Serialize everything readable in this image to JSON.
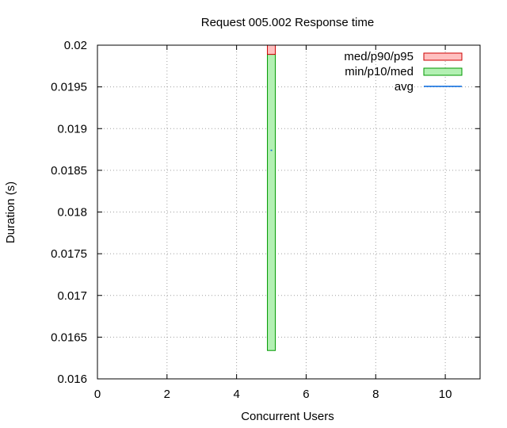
{
  "chart_data": {
    "type": "box",
    "title": "Request 005.002 Response time",
    "xlabel": "Concurrent Users",
    "ylabel": "Duration (s)",
    "xlim": [
      0,
      11
    ],
    "ylim": [
      0.016,
      0.02
    ],
    "x_ticks": [
      0,
      2,
      4,
      6,
      8,
      10
    ],
    "x_tick_labels": [
      "0",
      "2",
      "4",
      "6",
      "8",
      "10"
    ],
    "y_ticks": [
      0.016,
      0.0165,
      0.017,
      0.0175,
      0.018,
      0.0185,
      0.019,
      0.0195,
      0.02
    ],
    "y_tick_labels": [
      "0.016",
      "0.0165",
      "0.017",
      "0.0175",
      "0.018",
      "0.0185",
      "0.019",
      "0.0195",
      "0.02"
    ],
    "grid": true,
    "legend_position": "top-right",
    "series": [
      {
        "name": "med/p90/p95",
        "kind": "box-upper",
        "color": "#ffc0c0",
        "stroke": "#cc0000"
      },
      {
        "name": "min/p10/med",
        "kind": "box-lower",
        "color": "#b3f0b3",
        "stroke": "#009900"
      },
      {
        "name": "avg",
        "kind": "line",
        "color": "#0066dd"
      }
    ],
    "points": [
      {
        "x": 5,
        "min": 0.01634,
        "med": 0.01989,
        "p95": 0.02,
        "avg": 0.01874
      }
    ]
  }
}
